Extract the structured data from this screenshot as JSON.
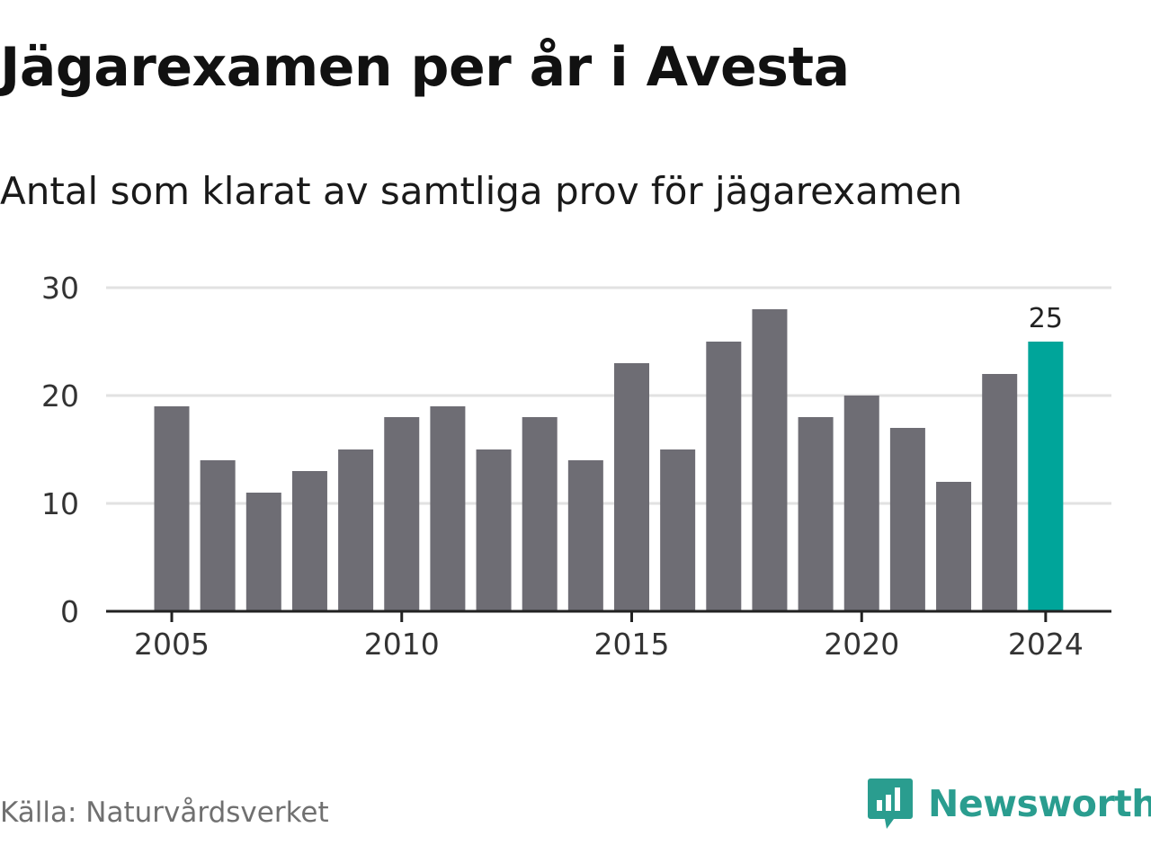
{
  "title": "Jägarexamen per år i Avesta",
  "subtitle": "Antal som klarat av samtliga prov för jägarexamen",
  "source": "Källa: Naturvårdsverket",
  "brand": {
    "name": "Newsworthy",
    "icon": "newsworthy-logo-icon",
    "color": "#2a9d8f"
  },
  "chart_data": {
    "type": "bar",
    "categories": [
      "2005",
      "2006",
      "2007",
      "2008",
      "2009",
      "2010",
      "2011",
      "2012",
      "2013",
      "2014",
      "2015",
      "2016",
      "2017",
      "2018",
      "2019",
      "2020",
      "2021",
      "2022",
      "2023",
      "2024"
    ],
    "values": [
      19,
      14,
      11,
      13,
      15,
      18,
      19,
      15,
      18,
      14,
      23,
      15,
      25,
      28,
      18,
      20,
      17,
      12,
      22,
      25
    ],
    "x_tick_labels": [
      "2005",
      "2010",
      "2015",
      "2020",
      "2024"
    ],
    "y_ticks": [
      0,
      10,
      20,
      30
    ],
    "ylim": [
      0,
      30
    ],
    "grid": true,
    "bar_color": "#6e6d74",
    "highlight": {
      "category": "2024",
      "value": 25,
      "label": "25",
      "color": "#00a59a"
    }
  }
}
